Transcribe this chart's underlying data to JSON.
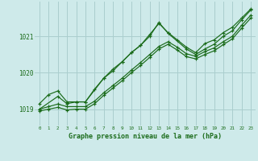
{
  "background_color": "#ceeaea",
  "grid_color": "#aacece",
  "line_color": "#1a6b1a",
  "title": "Graphe pression niveau de la mer (hPa)",
  "ylabel_ticks": [
    1019,
    1020,
    1021
  ],
  "xlim": [
    -0.5,
    23.5
  ],
  "ylim": [
    1018.55,
    1021.95
  ],
  "series": [
    {
      "x": [
        0,
        1,
        2,
        3,
        4,
        5,
        6,
        7,
        8,
        9,
        10,
        11,
        12,
        13,
        14,
        15,
        16,
        17,
        18,
        19,
        20,
        21,
        22,
        23
      ],
      "y": [
        1019.15,
        1019.4,
        1019.5,
        1019.2,
        1019.2,
        1019.2,
        1019.55,
        1019.85,
        1020.05,
        1020.3,
        1020.55,
        1020.75,
        1021.05,
        1021.35,
        1021.1,
        1020.9,
        1020.7,
        1020.55,
        1020.8,
        1020.9,
        1021.1,
        1021.25,
        1021.5,
        1021.75
      ]
    },
    {
      "x": [
        0,
        1,
        2,
        3,
        4,
        5,
        6,
        7,
        8,
        9,
        10,
        11,
        12,
        13,
        14,
        15,
        16,
        17,
        18,
        19,
        20,
        21,
        22,
        23
      ],
      "y": [
        1019.0,
        1019.07,
        1019.14,
        1019.07,
        1019.07,
        1019.07,
        1019.22,
        1019.45,
        1019.65,
        1019.85,
        1020.07,
        1020.28,
        1020.5,
        1020.72,
        1020.85,
        1020.7,
        1020.52,
        1020.45,
        1020.58,
        1020.68,
        1020.85,
        1021.0,
        1021.3,
        1021.58
      ]
    },
    {
      "x": [
        0,
        2,
        3,
        4,
        5,
        7,
        8,
        9,
        10,
        11,
        12,
        13,
        14,
        16,
        17,
        18,
        19,
        20,
        21,
        22,
        23
      ],
      "y": [
        1019.0,
        1019.35,
        1019.15,
        1019.2,
        1019.2,
        1019.85,
        1020.1,
        1020.3,
        1020.55,
        1020.75,
        1021.0,
        1021.38,
        1021.08,
        1020.65,
        1020.5,
        1020.65,
        1020.78,
        1021.0,
        1021.15,
        1021.45,
        1021.72
      ]
    },
    {
      "x": [
        0,
        1,
        2,
        3,
        4,
        5,
        6,
        7,
        8,
        9,
        10,
        11,
        12,
        13,
        14,
        15,
        16,
        17,
        18,
        19,
        20,
        21,
        22,
        23
      ],
      "y": [
        1018.95,
        1019.0,
        1019.05,
        1018.98,
        1019.0,
        1019.0,
        1019.15,
        1019.38,
        1019.58,
        1019.78,
        1020.0,
        1020.2,
        1020.42,
        1020.65,
        1020.78,
        1020.62,
        1020.44,
        1020.38,
        1020.5,
        1020.6,
        1020.77,
        1020.93,
        1021.22,
        1021.5
      ]
    }
  ]
}
